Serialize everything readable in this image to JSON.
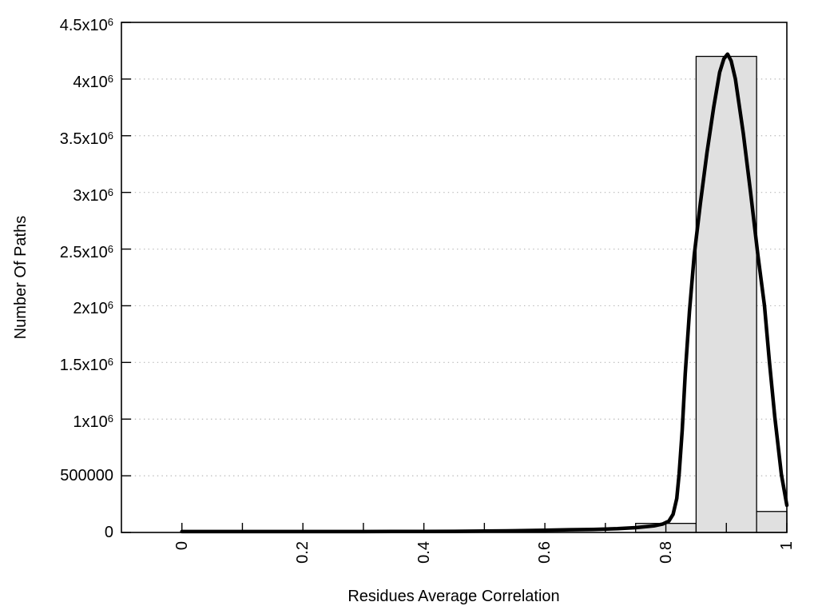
{
  "chart_data": {
    "type": "histogram",
    "title": "",
    "xlabel": "Residues Average Correlation",
    "ylabel": "Number Of Paths",
    "xlim": [
      -0.1,
      1.0
    ],
    "ylim": [
      0,
      4500000
    ],
    "grid": "horizontal dotted lines at every y tick",
    "legend": "none",
    "x_ticks": {
      "minor_positions": [
        0,
        0.1,
        0.2,
        0.3,
        0.4,
        0.5,
        0.6,
        0.7,
        0.8,
        0.9,
        1.0
      ],
      "labels": [
        {
          "v": 0,
          "text": "0"
        },
        {
          "v": 0.2,
          "text": "0.2"
        },
        {
          "v": 0.4,
          "text": "0.4"
        },
        {
          "v": 0.6,
          "text": "0.6"
        },
        {
          "v": 0.8,
          "text": "0.8"
        },
        {
          "v": 1,
          "text": "1"
        }
      ],
      "rotation": "vertical, reading bottom to top"
    },
    "y_ticks": [
      {
        "v": 0,
        "text": "0",
        "sup": ""
      },
      {
        "v": 500000,
        "text": "500000",
        "sup": ""
      },
      {
        "v": 1000000,
        "text": "1x10",
        "sup": "6"
      },
      {
        "v": 1500000,
        "text": "1.5x10",
        "sup": "6"
      },
      {
        "v": 2000000,
        "text": "2x10",
        "sup": "6"
      },
      {
        "v": 2500000,
        "text": "2.5x10",
        "sup": "6"
      },
      {
        "v": 3000000,
        "text": "3x10",
        "sup": "6"
      },
      {
        "v": 3500000,
        "text": "3.5x10",
        "sup": "6"
      },
      {
        "v": 4000000,
        "text": "4x10",
        "sup": "6"
      },
      {
        "v": 4500000,
        "text": "4.5x10",
        "sup": "6"
      }
    ],
    "bars": [
      {
        "x0": 0.75,
        "x1": 0.85,
        "value": 80000
      },
      {
        "x0": 0.85,
        "x1": 0.95,
        "value": 4200000
      },
      {
        "x0": 0.95,
        "x1": 1.0,
        "value": 185000
      }
    ],
    "curve_series": {
      "name": "density-fit-curve",
      "points": [
        [
          0,
          8000
        ],
        [
          0.05,
          8000
        ],
        [
          0.1,
          8000
        ],
        [
          0.15,
          8000
        ],
        [
          0.2,
          8000
        ],
        [
          0.25,
          8000
        ],
        [
          0.3,
          8000
        ],
        [
          0.35,
          8500
        ],
        [
          0.4,
          9000
        ],
        [
          0.45,
          10000
        ],
        [
          0.5,
          12000
        ],
        [
          0.55,
          15000
        ],
        [
          0.6,
          20000
        ],
        [
          0.64,
          24000
        ],
        [
          0.68,
          27000
        ],
        [
          0.72,
          33000
        ],
        [
          0.75,
          42000
        ],
        [
          0.78,
          58000
        ],
        [
          0.795,
          75000
        ],
        [
          0.805,
          100000
        ],
        [
          0.812,
          160000
        ],
        [
          0.818,
          300000
        ],
        [
          0.822,
          520000
        ],
        [
          0.827,
          900000
        ],
        [
          0.832,
          1400000
        ],
        [
          0.839,
          1950000
        ],
        [
          0.847,
          2450000
        ],
        [
          0.857,
          2900000
        ],
        [
          0.868,
          3350000
        ],
        [
          0.879,
          3750000
        ],
        [
          0.889,
          4060000
        ],
        [
          0.896,
          4180000
        ],
        [
          0.902,
          4220000
        ],
        [
          0.908,
          4160000
        ],
        [
          0.915,
          4000000
        ],
        [
          0.928,
          3520000
        ],
        [
          0.94,
          3000000
        ],
        [
          0.952,
          2450000
        ],
        [
          0.963,
          2000000
        ],
        [
          0.971,
          1520000
        ],
        [
          0.98,
          1020000
        ],
        [
          0.991,
          510000
        ],
        [
          1,
          240000
        ]
      ]
    },
    "colors": {
      "background": "#ffffff",
      "bar_fill": "#e0e0e0",
      "bar_border": "#000000",
      "curve": "#000000",
      "grid": "#b8b8b8",
      "axis": "#000000",
      "text": "#000000"
    }
  }
}
